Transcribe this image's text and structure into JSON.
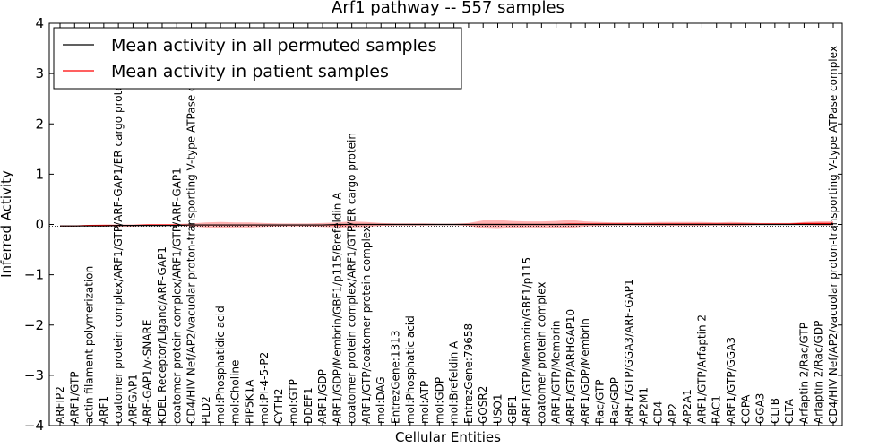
{
  "chart_data": {
    "type": "line",
    "title": "Arf1 pathway -- 557 samples",
    "xlabel": "Cellular Entities",
    "ylabel": "Inferred Activity",
    "ylim": [
      -4,
      4
    ],
    "yticks": [
      "−4",
      "−3",
      "−2",
      "−1",
      "0",
      "1",
      "2",
      "3",
      "4"
    ],
    "legend": {
      "placement": "top-left",
      "entries": [
        "Mean activity in all permuted samples",
        "Mean activity in patient samples"
      ]
    },
    "categories": [
      "ARFIP2",
      "ARF1/GTP",
      "actin filament polymerization",
      "ARF1",
      "coatomer protein complex/ARF1/GTP/ARF-GAP1/ER cargo protein",
      "ARFGAP1",
      "ARF-GAP1/v-SNARE",
      "KDEL Receptor/Ligand/ARF-GAP1",
      "coatomer protein complex/ARF1/GTP/ARF-GAP1",
      "CD4/HIV Nef/AP2/vacuolar proton-transporting V-type ATPase complex",
      "PLD2",
      "mol:Phosphatidic acid",
      "mol:Choline",
      "PIP5K1A",
      "mol:PI-4-5-P2",
      "CYTH2",
      "mol:GTP",
      "DDEF1",
      "ARF1/GDP",
      "ARF1/GDP/Membrin/GBF1/p115/Brefeldin A",
      "coatomer protein complex/ARF1/GTP/ER cargo protein",
      "ARF1/GTP/coatomer protein complex",
      "mol:DAG",
      "EntrezGene:1313",
      "mol:Phosphatic acid",
      "mol:ATP",
      "mol:GDP",
      "mol:Brefeldin A",
      "EntrezGene:79658",
      "GOSR2",
      "USO1",
      "GBF1",
      "ARF1/GTP/Membrin/GBF1/p115",
      "coatomer protein complex",
      "ARF1/GTP/Membrin",
      "ARF1/GTP/ARHGAP10",
      "ARF1/GDP/Membrin",
      "Rac/GTP",
      "Rac/GDP",
      "ARF1/GTP/GGA3/ARF-GAP1",
      "AP2M1",
      "CD4",
      "AP2",
      "AP2A1",
      "ARF1/GTP/Arfaptin 2",
      "RAC1",
      "ARF1/GTP/GGA3",
      "COPA",
      "GGA3",
      "CLTB",
      "CLTA",
      "Arfaptin 2/Rac/GTP",
      "Arfaptin 2/Rac/GDP",
      "CD4/HIV Nef/AP2/vacuolar proton-transporting V-type ATPase complex"
    ],
    "series": [
      {
        "name": "Mean activity in all permuted samples",
        "color": "#000000",
        "values": [
          -0.03,
          -0.03,
          -0.03,
          -0.03,
          -0.02,
          -0.02,
          -0.02,
          -0.02,
          -0.02,
          -0.01,
          -0.01,
          -0.01,
          -0.01,
          -0.01,
          -0.01,
          -0.01,
          -0.01,
          -0.01,
          -0.01,
          0,
          0,
          0,
          0,
          0,
          0,
          0,
          0,
          0,
          0,
          0,
          0,
          0,
          0,
          0,
          0,
          0,
          0,
          0,
          0,
          0,
          0,
          0,
          0,
          0,
          0,
          0,
          0,
          0,
          0,
          0,
          0,
          0,
          0,
          0
        ]
      },
      {
        "name": "Mean activity in patient samples",
        "color": "#ff0000",
        "values": [
          -0.03,
          -0.03,
          -0.02,
          -0.02,
          -0.02,
          -0.02,
          -0.01,
          -0.01,
          -0.01,
          -0.01,
          -0.01,
          -0.01,
          -0.01,
          -0.01,
          -0.01,
          -0.01,
          -0.01,
          -0.01,
          -0.01,
          -0.01,
          0,
          0,
          0,
          0,
          0,
          0,
          0,
          0,
          0,
          0,
          0,
          0,
          0,
          0,
          0,
          0.01,
          0.01,
          0.01,
          0.01,
          0.01,
          0.01,
          0.01,
          0.01,
          0.01,
          0.01,
          0.01,
          0.01,
          0.01,
          0.01,
          0.01,
          0.01,
          0.02,
          0.02,
          0.02
        ],
        "band": [
          0.01,
          0.01,
          0.01,
          0.02,
          0.02,
          0.02,
          0.02,
          0.02,
          0.02,
          0.03,
          0.05,
          0.06,
          0.05,
          0.05,
          0.04,
          0.03,
          0.03,
          0.03,
          0.04,
          0.05,
          0.06,
          0.05,
          0.03,
          0.02,
          0.02,
          0.02,
          0.01,
          0.01,
          0.03,
          0.08,
          0.09,
          0.07,
          0.06,
          0.06,
          0.07,
          0.08,
          0.05,
          0.04,
          0.03,
          0.03,
          0.03,
          0.04,
          0.04,
          0.04,
          0.04,
          0.03,
          0.04,
          0.03,
          0.02,
          0.02,
          0.02,
          0.03,
          0.04,
          0.04
        ]
      }
    ]
  }
}
